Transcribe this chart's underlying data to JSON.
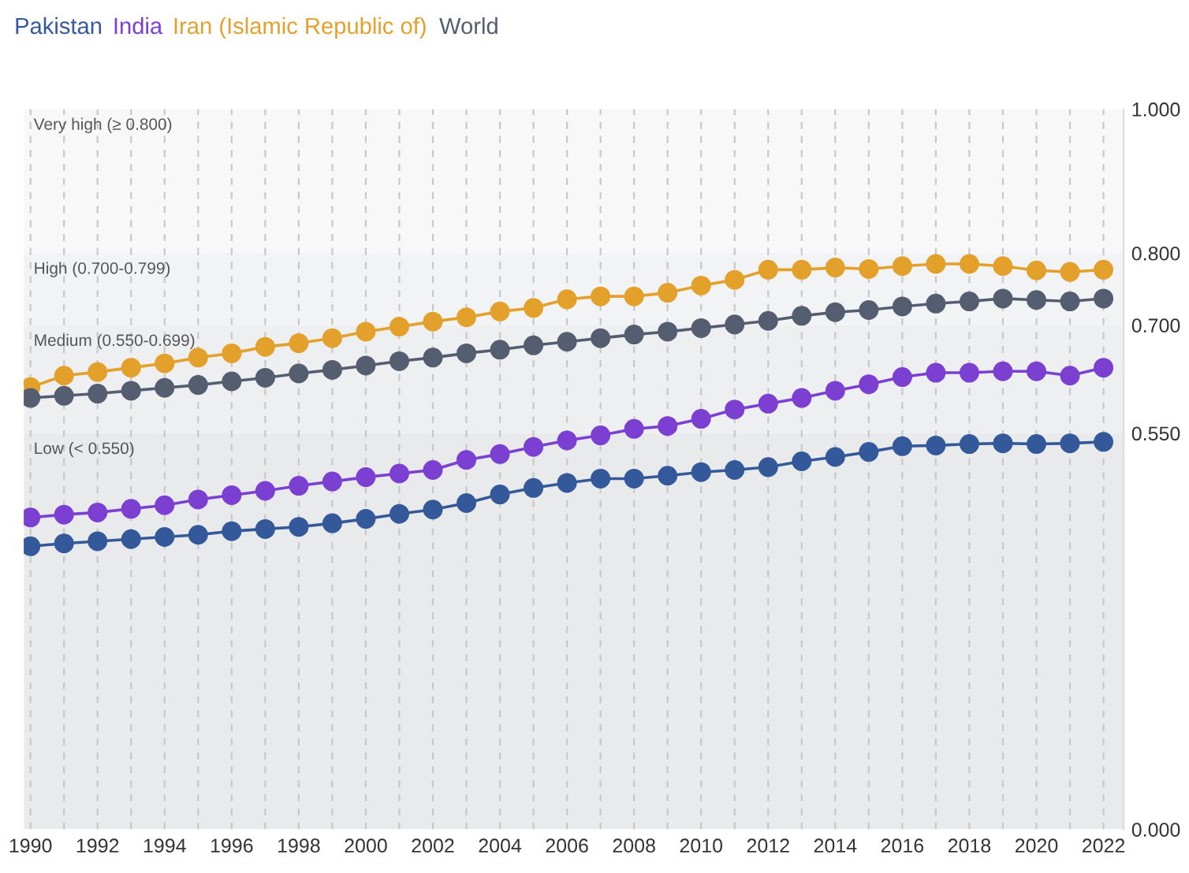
{
  "chart_data": {
    "type": "line",
    "x": [
      1990,
      1991,
      1992,
      1993,
      1994,
      1995,
      1996,
      1997,
      1998,
      1999,
      2000,
      2001,
      2002,
      2003,
      2004,
      2005,
      2006,
      2007,
      2008,
      2009,
      2010,
      2011,
      2012,
      2013,
      2014,
      2015,
      2016,
      2017,
      2018,
      2019,
      2020,
      2021,
      2022
    ],
    "series": [
      {
        "name": "Pakistan",
        "color": "#34599a",
        "values": [
          0.393,
          0.397,
          0.4,
          0.403,
          0.406,
          0.409,
          0.414,
          0.417,
          0.42,
          0.425,
          0.431,
          0.438,
          0.444,
          0.453,
          0.465,
          0.474,
          0.481,
          0.487,
          0.487,
          0.491,
          0.496,
          0.499,
          0.503,
          0.511,
          0.517,
          0.524,
          0.532,
          0.533,
          0.535,
          0.536,
          0.535,
          0.536,
          0.538
        ]
      },
      {
        "name": "India",
        "color": "#7b3fd1",
        "values": [
          0.433,
          0.437,
          0.44,
          0.445,
          0.45,
          0.458,
          0.464,
          0.47,
          0.477,
          0.483,
          0.489,
          0.494,
          0.499,
          0.513,
          0.521,
          0.531,
          0.54,
          0.547,
          0.556,
          0.56,
          0.57,
          0.583,
          0.591,
          0.599,
          0.609,
          0.618,
          0.628,
          0.634,
          0.634,
          0.636,
          0.636,
          0.63,
          0.641
        ]
      },
      {
        "name": "Iran (Islamic Republic of)",
        "color": "#e3a02a",
        "values": [
          0.614,
          0.63,
          0.635,
          0.641,
          0.647,
          0.655,
          0.661,
          0.67,
          0.675,
          0.682,
          0.691,
          0.698,
          0.705,
          0.711,
          0.719,
          0.724,
          0.736,
          0.74,
          0.74,
          0.745,
          0.755,
          0.763,
          0.777,
          0.777,
          0.78,
          0.778,
          0.782,
          0.785,
          0.785,
          0.782,
          0.776,
          0.774,
          0.777
        ]
      },
      {
        "name": "World",
        "color": "#555e70",
        "values": [
          0.599,
          0.602,
          0.605,
          0.609,
          0.613,
          0.617,
          0.622,
          0.627,
          0.633,
          0.638,
          0.644,
          0.65,
          0.655,
          0.661,
          0.666,
          0.672,
          0.677,
          0.682,
          0.687,
          0.691,
          0.696,
          0.701,
          0.706,
          0.713,
          0.718,
          0.721,
          0.726,
          0.73,
          0.733,
          0.737,
          0.735,
          0.733,
          0.737
        ]
      }
    ],
    "xlim": [
      1989.8,
      2022.6
    ],
    "xticks": [
      1990,
      {
        "value": 1991,
        "label": null
      },
      1992,
      {
        "value": 1993,
        "label": null
      },
      1994,
      {
        "value": 1995,
        "label": null
      },
      1996,
      {
        "value": 1997,
        "label": null
      },
      1998,
      {
        "value": 1999,
        "label": null
      },
      2000,
      {
        "value": 2001,
        "label": null
      },
      2002,
      {
        "value": 2003,
        "label": null
      },
      2004,
      {
        "value": 2005,
        "label": null
      },
      2006,
      {
        "value": 2007,
        "label": null
      },
      2008,
      {
        "value": 2009,
        "label": null
      },
      2010,
      {
        "value": 2011,
        "label": null
      },
      2012,
      {
        "value": 2013,
        "label": null
      },
      2014,
      {
        "value": 2015,
        "label": null
      },
      2016,
      {
        "value": 2017,
        "label": null
      },
      2018,
      {
        "value": 2019,
        "label": null
      },
      2020,
      {
        "value": 2021,
        "label": null
      },
      2022
    ],
    "ylim": [
      0,
      1
    ],
    "yticks": [
      {
        "value": 0,
        "label": "0.000"
      },
      {
        "value": 0.55,
        "label": "0.550"
      },
      {
        "value": 0.7,
        "label": "0.700"
      },
      {
        "value": 0.8,
        "label": "0.800"
      },
      {
        "value": 1,
        "label": "1.000"
      }
    ],
    "bands": [
      {
        "axis": "y",
        "from": 0,
        "to": 0.55,
        "label": "Low (< 0.550)",
        "color": "#e9eaec"
      },
      {
        "axis": "y",
        "from": 0.55,
        "to": 0.7,
        "label": "Medium (0.550-0.699)",
        "color": "#eeeff1"
      },
      {
        "axis": "y",
        "from": 0.7,
        "to": 0.8,
        "label": "High (0.700-0.799)",
        "color": "#f2f3f5"
      },
      {
        "axis": "y",
        "from": 0.8,
        "to": 1,
        "label": "Very high (≥ 0.800)",
        "color": "#f8f8f9"
      }
    ],
    "grid": "x",
    "marker": "circle",
    "line_style": "solid",
    "legend": "top left"
  }
}
